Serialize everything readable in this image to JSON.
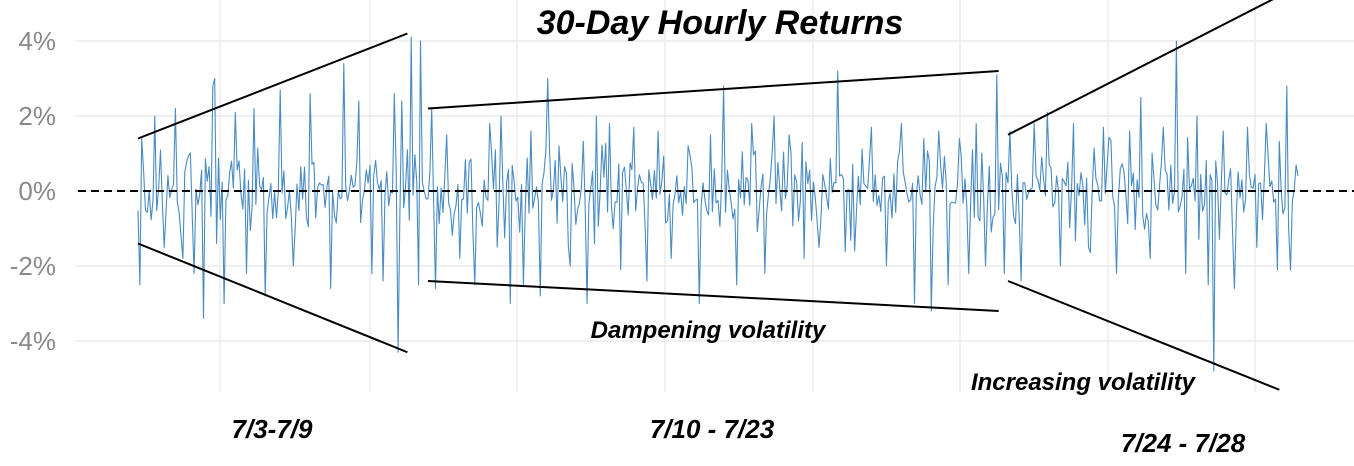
{
  "chart_data": {
    "type": "line",
    "title": "30-Day Hourly Returns",
    "xlabel": "",
    "ylabel": "",
    "ylim": [
      -0.05,
      0.042
    ],
    "y_ticks": [
      {
        "value": 0.04,
        "label": "4%"
      },
      {
        "value": 0.02,
        "label": "2%"
      },
      {
        "value": 0.0,
        "label": "0%"
      },
      {
        "value": -0.02,
        "label": "-2%"
      },
      {
        "value": -0.04,
        "label": "-4%"
      }
    ],
    "x_hours_total": 620,
    "grid": true,
    "zero_reference_line": "dashed",
    "series_color": "#4a8bc2",
    "periods": [
      {
        "label": "7/3-7/9",
        "start_hour": 0,
        "end_hour": 144,
        "label_row": 1
      },
      {
        "label": "7/10 - 7/23",
        "start_hour": 155,
        "end_hour": 460,
        "label_row": 1
      },
      {
        "label": "7/24 - 7/28",
        "start_hour": 465,
        "end_hour": 620,
        "label_row": 2
      }
    ],
    "annotations": [
      {
        "text": "Dampening volatility",
        "near_period": 1
      },
      {
        "text": "Increasing volatility",
        "near_period": 2
      }
    ],
    "trend_lines": [
      {
        "period": 0,
        "side": "upper",
        "from": [
          0,
          0.014
        ],
        "to": [
          144,
          0.042
        ]
      },
      {
        "period": 0,
        "side": "lower",
        "from": [
          0,
          -0.014
        ],
        "to": [
          144,
          -0.043
        ]
      },
      {
        "period": 1,
        "side": "upper",
        "from": [
          155,
          0.022
        ],
        "to": [
          460,
          0.032
        ]
      },
      {
        "period": 1,
        "side": "lower",
        "from": [
          155,
          -0.024
        ],
        "to": [
          460,
          -0.032
        ]
      },
      {
        "period": 2,
        "side": "upper",
        "from": [
          465,
          0.015
        ],
        "to": [
          610,
          0.052
        ]
      },
      {
        "period": 2,
        "side": "lower",
        "from": [
          465,
          -0.024
        ],
        "to": [
          610,
          -0.053
        ]
      }
    ],
    "spikes": [
      [
        1,
        -0.025
      ],
      [
        2,
        0.014
      ],
      [
        9,
        0.02
      ],
      [
        14,
        -0.015
      ],
      [
        20,
        0.022
      ],
      [
        24,
        -0.018
      ],
      [
        30,
        -0.022
      ],
      [
        35,
        -0.034
      ],
      [
        40,
        0.028
      ],
      [
        41,
        0.03
      ],
      [
        46,
        -0.03
      ],
      [
        52,
        0.021
      ],
      [
        58,
        -0.022
      ],
      [
        62,
        0.022
      ],
      [
        68,
        -0.028
      ],
      [
        76,
        0.027
      ],
      [
        83,
        -0.02
      ],
      [
        92,
        0.026
      ],
      [
        103,
        -0.026
      ],
      [
        110,
        0.034
      ],
      [
        118,
        0.024
      ],
      [
        125,
        -0.022
      ],
      [
        131,
        -0.024
      ],
      [
        137,
        0.026
      ],
      [
        139,
        -0.043
      ],
      [
        141,
        0.024
      ],
      [
        146,
        0.041
      ],
      [
        150,
        -0.025
      ],
      [
        151,
        0.04
      ],
      [
        157,
        0.022
      ],
      [
        159,
        -0.026
      ],
      [
        165,
        0.015
      ],
      [
        172,
        -0.018
      ],
      [
        180,
        -0.025
      ],
      [
        188,
        0.018
      ],
      [
        194,
        0.02
      ],
      [
        199,
        -0.03
      ],
      [
        206,
        -0.025
      ],
      [
        210,
        0.016
      ],
      [
        215,
        -0.028
      ],
      [
        219,
        0.03
      ],
      [
        225,
        0.012
      ],
      [
        231,
        -0.02
      ],
      [
        240,
        -0.03
      ],
      [
        245,
        0.02
      ],
      [
        252,
        0.018
      ],
      [
        258,
        -0.021
      ],
      [
        265,
        0.017
      ],
      [
        272,
        -0.024
      ],
      [
        278,
        0.016
      ],
      [
        285,
        -0.018
      ],
      [
        300,
        -0.03
      ],
      [
        306,
        0.015
      ],
      [
        313,
        0.028
      ],
      [
        320,
        -0.025
      ],
      [
        328,
        0.018
      ],
      [
        335,
        -0.022
      ],
      [
        340,
        0.02
      ],
      [
        348,
        0.015
      ],
      [
        356,
        -0.018
      ],
      [
        364,
        -0.015
      ],
      [
        374,
        0.032
      ],
      [
        383,
        -0.016
      ],
      [
        392,
        0.017
      ],
      [
        400,
        -0.02
      ],
      [
        408,
        0.018
      ],
      [
        415,
        -0.03
      ],
      [
        420,
        0.014
      ],
      [
        424,
        -0.032
      ],
      [
        428,
        0.016
      ],
      [
        433,
        -0.025
      ],
      [
        439,
        0.014
      ],
      [
        444,
        -0.022
      ],
      [
        448,
        0.018
      ],
      [
        453,
        -0.02
      ],
      [
        459,
        0.031
      ],
      [
        463,
        -0.022
      ],
      [
        466,
        0.016
      ],
      [
        472,
        -0.024
      ],
      [
        479,
        0.018
      ],
      [
        486,
        0.021
      ],
      [
        493,
        -0.02
      ],
      [
        500,
        0.018
      ],
      [
        508,
        -0.015
      ],
      [
        516,
        0.017
      ],
      [
        523,
        -0.022
      ],
      [
        530,
        0.016
      ],
      [
        536,
        0.025
      ],
      [
        541,
        -0.018
      ],
      [
        548,
        0.017
      ],
      [
        555,
        0.04
      ],
      [
        560,
        -0.022
      ],
      [
        566,
        0.02
      ],
      [
        572,
        -0.025
      ],
      [
        575,
        -0.048
      ],
      [
        580,
        0.016
      ],
      [
        586,
        -0.026
      ],
      [
        593,
        0.017
      ],
      [
        598,
        -0.015
      ],
      [
        603,
        0.018
      ],
      [
        609,
        -0.021
      ],
      [
        614,
        0.028
      ],
      [
        616,
        -0.021
      ]
    ]
  }
}
